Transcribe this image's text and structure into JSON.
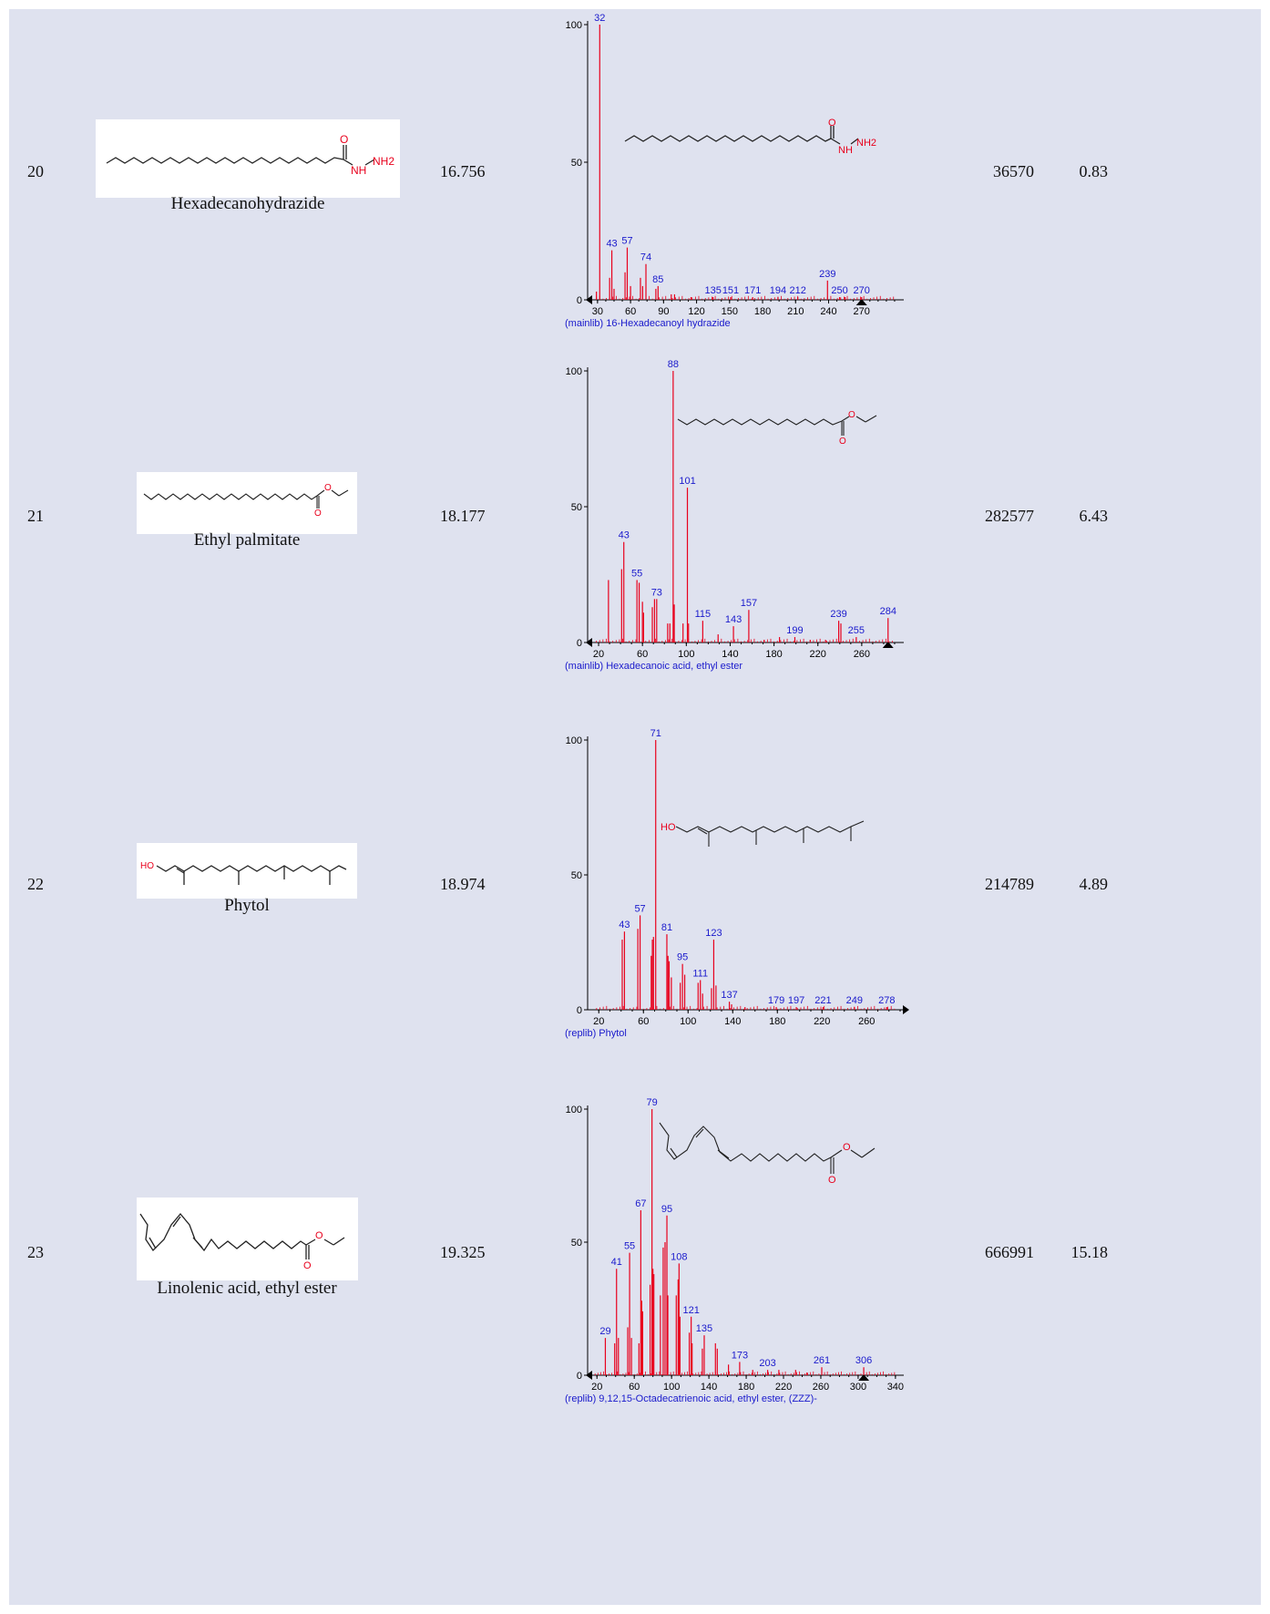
{
  "rows": [
    {
      "no": "20",
      "name": "Hexadecanohydrazide",
      "rt": "16.756",
      "area": "36570",
      "pct": "0.83",
      "struct_labels": {
        "o": "O",
        "nh": "NH",
        "nh2": "NH2"
      },
      "spectrum_struct_labels": {
        "o": "O",
        "nh": "NH",
        "nh2": "NH2"
      }
    },
    {
      "no": "21",
      "name": "Ethyl palmitate",
      "rt": "18.177",
      "area": "282577",
      "pct": "6.43",
      "struct_labels": {
        "o1": "O",
        "o2": "O"
      },
      "spectrum_struct_labels": {
        "o1": "O",
        "o2": "O"
      }
    },
    {
      "no": "22",
      "name": "Phytol",
      "rt": "18.974",
      "area": "214789",
      "pct": "4.89",
      "struct_labels": {
        "ho": "HO"
      },
      "spectrum_struct_labels": {
        "ho": "HO"
      }
    },
    {
      "no": "23",
      "name": "Linolenic acid, ethyl ester",
      "rt": "19.325",
      "area": "666991",
      "pct": "15.18",
      "struct_labels": {
        "o1": "O",
        "o2": "O"
      },
      "spectrum_struct_labels": {
        "o1": "O",
        "o2": "O"
      }
    }
  ],
  "colors": {
    "peak": "#e8001c",
    "label": "#1a1acc",
    "axis": "#000000",
    "panel": "#dfe2ef"
  },
  "chart_data": [
    {
      "type": "bar",
      "caption": "(mainlib) 16-Hexadecanoyl hydrazide",
      "xlim": [
        21,
        305
      ],
      "ylim": [
        0,
        100
      ],
      "xticks": [
        30,
        60,
        90,
        120,
        150,
        180,
        210,
        240,
        270
      ],
      "yticks": [
        0,
        50,
        100
      ],
      "left_arrow": true,
      "right_marker": 270,
      "peaks": [
        [
          32,
          100
        ],
        [
          43,
          18
        ],
        [
          57,
          19
        ],
        [
          74,
          13
        ],
        [
          85,
          5
        ],
        [
          135,
          1
        ],
        [
          151,
          1
        ],
        [
          171,
          1
        ],
        [
          194,
          1
        ],
        [
          212,
          1
        ],
        [
          239,
          7
        ],
        [
          250,
          1
        ],
        [
          270,
          1
        ],
        [
          41,
          8
        ],
        [
          55,
          10
        ],
        [
          69,
          8
        ],
        [
          71,
          5
        ],
        [
          83,
          4
        ],
        [
          97,
          2
        ],
        [
          60,
          5
        ],
        [
          29,
          3
        ],
        [
          45,
          4
        ],
        [
          100,
          2
        ],
        [
          115,
          1
        ],
        [
          255,
          1
        ]
      ],
      "labels": [
        [
          32,
          "32"
        ],
        [
          43,
          "43"
        ],
        [
          57,
          "57"
        ],
        [
          74,
          "74"
        ],
        [
          85,
          "85"
        ],
        [
          135,
          "135"
        ],
        [
          151,
          "151"
        ],
        [
          171,
          "171"
        ],
        [
          194,
          "194"
        ],
        [
          212,
          "212"
        ],
        [
          239,
          "239"
        ],
        [
          250,
          "250"
        ],
        [
          270,
          "270"
        ]
      ]
    },
    {
      "type": "bar",
      "caption": "(mainlib) Hexadecanoic acid, ethyl ester",
      "xlim": [
        10,
        295
      ],
      "ylim": [
        0,
        100
      ],
      "xticks": [
        20,
        60,
        100,
        140,
        180,
        220,
        260
      ],
      "yticks": [
        0,
        50,
        100
      ],
      "left_arrow": true,
      "right_marker": 284,
      "peaks": [
        [
          29,
          23
        ],
        [
          41,
          27
        ],
        [
          43,
          37
        ],
        [
          55,
          23
        ],
        [
          57,
          22
        ],
        [
          60,
          15
        ],
        [
          61,
          11
        ],
        [
          69,
          13
        ],
        [
          71,
          16
        ],
        [
          73,
          16
        ],
        [
          83,
          7
        ],
        [
          85,
          7
        ],
        [
          88,
          100
        ],
        [
          89,
          14
        ],
        [
          97,
          7
        ],
        [
          101,
          57
        ],
        [
          102,
          7
        ],
        [
          115,
          8
        ],
        [
          129,
          3
        ],
        [
          143,
          6
        ],
        [
          157,
          12
        ],
        [
          171,
          1
        ],
        [
          185,
          2
        ],
        [
          199,
          2
        ],
        [
          213,
          1
        ],
        [
          227,
          1
        ],
        [
          239,
          8
        ],
        [
          241,
          7
        ],
        [
          255,
          2
        ],
        [
          284,
          9
        ]
      ],
      "labels": [
        [
          43,
          "43"
        ],
        [
          55,
          "55"
        ],
        [
          73,
          "73"
        ],
        [
          88,
          "88"
        ],
        [
          101,
          "101"
        ],
        [
          115,
          "115"
        ],
        [
          143,
          "143"
        ],
        [
          157,
          "157"
        ],
        [
          199,
          "199"
        ],
        [
          239,
          "239"
        ],
        [
          255,
          "255"
        ],
        [
          284,
          "284"
        ]
      ]
    },
    {
      "type": "bar",
      "caption": "(replib) Phytol",
      "xlim": [
        10,
        290
      ],
      "ylim": [
        0,
        100
      ],
      "xticks": [
        20,
        60,
        100,
        140,
        180,
        220,
        260
      ],
      "yticks": [
        0,
        50,
        100
      ],
      "left_arrow": false,
      "right_marker": null,
      "peaks": [
        [
          41,
          26
        ],
        [
          43,
          29
        ],
        [
          55,
          30
        ],
        [
          57,
          35
        ],
        [
          67,
          20
        ],
        [
          68,
          26
        ],
        [
          69,
          27
        ],
        [
          71,
          100
        ],
        [
          81,
          28
        ],
        [
          82,
          20
        ],
        [
          83,
          18
        ],
        [
          85,
          12
        ],
        [
          93,
          10
        ],
        [
          95,
          17
        ],
        [
          97,
          13
        ],
        [
          109,
          10
        ],
        [
          111,
          11
        ],
        [
          113,
          6
        ],
        [
          121,
          8
        ],
        [
          123,
          26
        ],
        [
          125,
          9
        ],
        [
          137,
          3
        ],
        [
          139,
          2
        ],
        [
          151,
          1
        ],
        [
          179,
          1
        ],
        [
          197,
          1
        ],
        [
          221,
          1
        ],
        [
          249,
          1
        ],
        [
          278,
          1
        ]
      ],
      "labels": [
        [
          43,
          "43"
        ],
        [
          57,
          "57"
        ],
        [
          71,
          "71"
        ],
        [
          81,
          "81"
        ],
        [
          95,
          "95"
        ],
        [
          111,
          "111"
        ],
        [
          123,
          "123"
        ],
        [
          137,
          "137"
        ],
        [
          179,
          "179"
        ],
        [
          197,
          "197"
        ],
        [
          221,
          "221"
        ],
        [
          249,
          "249"
        ],
        [
          278,
          "278"
        ]
      ]
    },
    {
      "type": "bar",
      "caption": "(replib) 9,12,15-Octadecatrienoic acid, ethyl ester, (ZZZ)-",
      "xlim": [
        10,
        345
      ],
      "ylim": [
        0,
        100
      ],
      "xticks": [
        20,
        60,
        100,
        140,
        180,
        220,
        260,
        300,
        340
      ],
      "yticks": [
        0,
        50,
        100
      ],
      "left_arrow": true,
      "right_marker": 306,
      "peaks": [
        [
          29,
          14
        ],
        [
          39,
          12
        ],
        [
          41,
          40
        ],
        [
          43,
          14
        ],
        [
          53,
          18
        ],
        [
          55,
          46
        ],
        [
          57,
          14
        ],
        [
          65,
          12
        ],
        [
          67,
          62
        ],
        [
          68,
          28
        ],
        [
          69,
          24
        ],
        [
          77,
          34
        ],
        [
          79,
          100
        ],
        [
          80,
          40
        ],
        [
          81,
          38
        ],
        [
          88,
          30
        ],
        [
          91,
          48
        ],
        [
          93,
          50
        ],
        [
          95,
          60
        ],
        [
          96,
          30
        ],
        [
          105,
          30
        ],
        [
          107,
          36
        ],
        [
          108,
          42
        ],
        [
          109,
          22
        ],
        [
          119,
          16
        ],
        [
          121,
          22
        ],
        [
          122,
          12
        ],
        [
          133,
          10
        ],
        [
          135,
          15
        ],
        [
          147,
          12
        ],
        [
          149,
          10
        ],
        [
          161,
          4
        ],
        [
          173,
          5
        ],
        [
          187,
          2
        ],
        [
          203,
          2
        ],
        [
          215,
          2
        ],
        [
          233,
          2
        ],
        [
          245,
          1
        ],
        [
          261,
          3
        ],
        [
          306,
          3
        ]
      ],
      "labels": [
        [
          29,
          "29"
        ],
        [
          41,
          "41"
        ],
        [
          55,
          "55"
        ],
        [
          67,
          "67"
        ],
        [
          79,
          "79"
        ],
        [
          95,
          "95"
        ],
        [
          108,
          "108"
        ],
        [
          121,
          "121"
        ],
        [
          135,
          "135"
        ],
        [
          173,
          "173"
        ],
        [
          203,
          "203"
        ],
        [
          261,
          "261"
        ],
        [
          306,
          "306"
        ]
      ]
    }
  ]
}
